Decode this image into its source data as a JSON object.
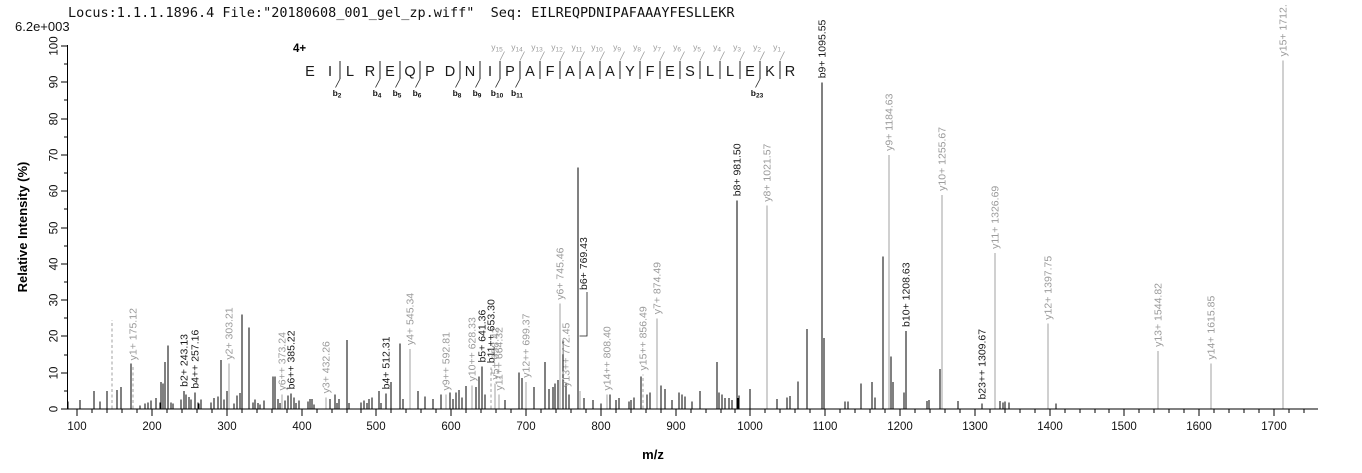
{
  "header": {
    "info_line": "Locus:1.1.1.1896.4 File:\"20180608_001_gel_zp.wiff\"  Seq: EILREQPDNIPAFAAAYFESLLEKR",
    "intensity_scale": "6.2e+003"
  },
  "peptide": {
    "charge_label": "4+",
    "sequence": "EILREQPDNIPAFAAAYFESLLEKR",
    "b_ions": [
      2,
      4,
      5,
      6,
      8,
      9,
      10,
      11,
      23
    ],
    "y_ions": [
      1,
      2,
      3,
      4,
      5,
      6,
      7,
      8,
      9,
      10,
      11,
      12,
      13,
      14,
      15
    ]
  },
  "axes": {
    "x_title": "m/z",
    "y_title": "Relative  Intensity (%)",
    "x_major_ticks": [
      100,
      200,
      300,
      400,
      500,
      600,
      700,
      800,
      900,
      1000,
      1100,
      1200,
      1300,
      1400,
      1500,
      1600,
      1700
    ],
    "x_minor_step": 20,
    "x_domain": [
      87,
      1760
    ],
    "y_major_ticks": [
      0,
      10,
      20,
      30,
      40,
      50,
      60,
      70,
      80,
      90,
      100
    ],
    "y_minor_step": 5,
    "y_domain": [
      0,
      100
    ]
  },
  "colors": {
    "peak_black": "#000000",
    "peak_gray": "#a0a0a0",
    "label_gray": "#9b9b9b",
    "label_black": "#1a1a1a",
    "axis": "#000000"
  },
  "chart_data": {
    "type": "bar",
    "subtype": "centroided-mass-spectrum",
    "xlabel": "m/z",
    "ylabel": "Relative Intensity (%)",
    "xlim": [
      87,
      1760
    ],
    "ylim": [
      0,
      100
    ],
    "peaks": [
      {
        "mz": 88,
        "i": 2
      },
      {
        "mz": 104,
        "i": 2.5
      },
      {
        "mz": 122,
        "i": 5
      },
      {
        "mz": 130,
        "i": 2
      },
      {
        "mz": 140,
        "i": 5
      },
      {
        "mz": 146,
        "i": 24.5,
        "s": "gd"
      },
      {
        "mz": 153,
        "i": 5.3
      },
      {
        "mz": 158,
        "i": 6
      },
      {
        "mz": 172,
        "i": 12.5
      },
      {
        "mz": 175.12,
        "i": 12.3,
        "s": "gd",
        "ion": "y",
        "label": "y1+ 175.12"
      },
      {
        "mz": 184,
        "i": 1
      },
      {
        "mz": 190,
        "i": 1.5
      },
      {
        "mz": 194,
        "i": 1.8
      },
      {
        "mz": 199,
        "i": 2.4
      },
      {
        "mz": 205,
        "i": 3
      },
      {
        "mz": 210,
        "i": 1.8
      },
      {
        "mz": 212,
        "i": 7.5
      },
      {
        "mz": 215,
        "i": 7
      },
      {
        "mz": 218,
        "i": 13
      },
      {
        "mz": 222,
        "i": 17.5
      },
      {
        "mz": 225,
        "i": 1.8
      },
      {
        "mz": 228,
        "i": 1.5
      },
      {
        "mz": 239,
        "i": 2.6
      },
      {
        "mz": 243.13,
        "i": 5,
        "ion": "b",
        "label": "b2+ 243.13"
      },
      {
        "mz": 246,
        "i": 4
      },
      {
        "mz": 249,
        "i": 3.3
      },
      {
        "mz": 252,
        "i": 2.6
      },
      {
        "mz": 257.16,
        "i": 4.5,
        "ion": "b",
        "label": "b4++ 257.16"
      },
      {
        "mz": 261,
        "i": 1.8
      },
      {
        "mz": 263,
        "i": 1.5
      },
      {
        "mz": 266,
        "i": 2.6
      },
      {
        "mz": 279,
        "i": 1.8
      },
      {
        "mz": 283,
        "i": 3
      },
      {
        "mz": 288,
        "i": 3.5
      },
      {
        "mz": 292,
        "i": 13.5
      },
      {
        "mz": 296,
        "i": 2.6
      },
      {
        "mz": 300,
        "i": 4.9
      },
      {
        "mz": 303.21,
        "i": 12.5,
        "s": "g",
        "ion": "y",
        "label": "y2+ 303.21"
      },
      {
        "mz": 310,
        "i": 1.5
      },
      {
        "mz": 314,
        "i": 3.7
      },
      {
        "mz": 317,
        "i": 4.4
      },
      {
        "mz": 320,
        "i": 26
      },
      {
        "mz": 329,
        "i": 22.5
      },
      {
        "mz": 335,
        "i": 1.8
      },
      {
        "mz": 338,
        "i": 2.6
      },
      {
        "mz": 342,
        "i": 1.6
      },
      {
        "mz": 345,
        "i": 1.2
      },
      {
        "mz": 350,
        "i": 2.3
      },
      {
        "mz": 362,
        "i": 9
      },
      {
        "mz": 365,
        "i": 9
      },
      {
        "mz": 368,
        "i": 2.7
      },
      {
        "mz": 371,
        "i": 1.6
      },
      {
        "mz": 373.24,
        "i": 4,
        "s": "g",
        "ion": "y",
        "label": "y6++ 373.24"
      },
      {
        "mz": 378,
        "i": 2.3
      },
      {
        "mz": 382,
        "i": 3.7
      },
      {
        "mz": 385.22,
        "i": 4.3,
        "ion": "b",
        "label": "b6++ 385.22"
      },
      {
        "mz": 390,
        "i": 3.2
      },
      {
        "mz": 393,
        "i": 1.6
      },
      {
        "mz": 396,
        "i": 2.3
      },
      {
        "mz": 408,
        "i": 2.1
      },
      {
        "mz": 411,
        "i": 2.7
      },
      {
        "mz": 414,
        "i": 2.7
      },
      {
        "mz": 417,
        "i": 1.2
      },
      {
        "mz": 432.26,
        "i": 3.2,
        "s": "g",
        "ion": "y",
        "label": "y3+ 432.26"
      },
      {
        "mz": 438,
        "i": 2.7
      },
      {
        "mz": 444,
        "i": 4
      },
      {
        "mz": 447,
        "i": 1.6
      },
      {
        "mz": 450,
        "i": 2.7
      },
      {
        "mz": 460,
        "i": 19
      },
      {
        "mz": 464,
        "i": 1.6
      },
      {
        "mz": 480,
        "i": 1.8
      },
      {
        "mz": 484,
        "i": 2.3
      },
      {
        "mz": 487,
        "i": 1.6
      },
      {
        "mz": 490,
        "i": 2.7
      },
      {
        "mz": 494,
        "i": 3.2
      },
      {
        "mz": 503,
        "i": 5
      },
      {
        "mz": 506,
        "i": 1.6
      },
      {
        "mz": 512.31,
        "i": 4.3,
        "ion": "b",
        "label": "b4+ 512.31"
      },
      {
        "mz": 520,
        "i": 7.5
      },
      {
        "mz": 531,
        "i": 18
      },
      {
        "mz": 535,
        "i": 2.7
      },
      {
        "mz": 545.34,
        "i": 16.5,
        "s": "g",
        "ion": "y",
        "label": "y4+ 545.34"
      },
      {
        "mz": 556,
        "i": 5
      },
      {
        "mz": 565,
        "i": 3.5
      },
      {
        "mz": 576,
        "i": 2.7
      },
      {
        "mz": 586,
        "i": 4
      },
      {
        "mz": 592.81,
        "i": 4,
        "s": "g",
        "ion": "y",
        "label": "y9++ 592.81"
      },
      {
        "mz": 598,
        "i": 4.5
      },
      {
        "mz": 603,
        "i": 2.7
      },
      {
        "mz": 606,
        "i": 4.6
      },
      {
        "mz": 611,
        "i": 5.2
      },
      {
        "mz": 615,
        "i": 3.2
      },
      {
        "mz": 620,
        "i": 6.4
      },
      {
        "mz": 628.33,
        "i": 6.5,
        "s": "g",
        "ion": "y",
        "label": "y10++ 628.33"
      },
      {
        "mz": 633,
        "i": 6
      },
      {
        "mz": 637,
        "i": 9
      },
      {
        "mz": 641.36,
        "i": 11.7,
        "ion": "b",
        "label": "b5+ 641.36"
      },
      {
        "mz": 644.5,
        "i": 4
      },
      {
        "mz": 653.3,
        "i": 11.5,
        "s": "gd",
        "ion": "b",
        "label": "b11++ 653.30"
      },
      {
        "mz": 658.42,
        "i": 7,
        "s": "g",
        "ion": "y",
        "label": "y5+ 658.42"
      },
      {
        "mz": 664.32,
        "i": 4,
        "s": "g",
        "ion": "y",
        "label": "y11++ 664.32"
      },
      {
        "mz": 672,
        "i": 2.5
      },
      {
        "mz": 690,
        "i": 10
      },
      {
        "mz": 695,
        "i": 8.5
      },
      {
        "mz": 699.37,
        "i": 7.5,
        "s": "g",
        "ion": "y",
        "label": "y12++ 699.37"
      },
      {
        "mz": 710,
        "i": 6
      },
      {
        "mz": 726,
        "i": 13
      },
      {
        "mz": 731,
        "i": 5.5
      },
      {
        "mz": 736,
        "i": 6
      },
      {
        "mz": 739,
        "i": 7
      },
      {
        "mz": 743,
        "i": 8
      },
      {
        "mz": 745.46,
        "i": 29,
        "s": "g",
        "ion": "y",
        "label": "y6+ 745.46"
      },
      {
        "mz": 750,
        "i": 19
      },
      {
        "mz": 753,
        "i": 7
      },
      {
        "mz": 757,
        "i": 4
      },
      {
        "mz": 769.43,
        "i": 66.5,
        "ion": "b",
        "label": "b6+ 769.43",
        "ly": 290
      },
      {
        "mz": 772.45,
        "i": 5,
        "s": "g",
        "ion": "y",
        "label": "y13++ 772.45",
        "lxo": -14
      },
      {
        "mz": 778,
        "i": 3
      },
      {
        "mz": 790,
        "i": 2.5
      },
      {
        "mz": 800,
        "i": 1.5
      },
      {
        "mz": 808.4,
        "i": 4,
        "s": "g",
        "ion": "y",
        "label": "y14++ 808.40"
      },
      {
        "mz": 812,
        "i": 4
      },
      {
        "mz": 820,
        "i": 2.5
      },
      {
        "mz": 824,
        "i": 3
      },
      {
        "mz": 838,
        "i": 2
      },
      {
        "mz": 841,
        "i": 2.5
      },
      {
        "mz": 844,
        "i": 3.2
      },
      {
        "mz": 854,
        "i": 9
      },
      {
        "mz": 856.49,
        "i": 9.5,
        "s": "gd",
        "ion": "y",
        "label": "y15++ 856.49"
      },
      {
        "mz": 862,
        "i": 4
      },
      {
        "mz": 866,
        "i": 4.5
      },
      {
        "mz": 874.49,
        "i": 25,
        "s": "g",
        "ion": "y",
        "label": "y7+ 874.49"
      },
      {
        "mz": 881,
        "i": 6.5
      },
      {
        "mz": 886,
        "i": 5.5
      },
      {
        "mz": 895,
        "i": 2.5
      },
      {
        "mz": 905,
        "i": 4.5
      },
      {
        "mz": 909,
        "i": 4
      },
      {
        "mz": 913,
        "i": 3.5
      },
      {
        "mz": 922,
        "i": 2
      },
      {
        "mz": 933,
        "i": 5
      },
      {
        "mz": 955,
        "i": 13
      },
      {
        "mz": 958,
        "i": 4.5
      },
      {
        "mz": 962,
        "i": 4
      },
      {
        "mz": 966,
        "i": 3
      },
      {
        "mz": 971,
        "i": 3
      },
      {
        "mz": 976,
        "i": 2.5
      },
      {
        "mz": 981.5,
        "i": 57.5,
        "ion": "b",
        "label": "b8+ 981.50"
      },
      {
        "mz": 983,
        "i": 3
      },
      {
        "mz": 985,
        "i": 3.7
      },
      {
        "mz": 1000,
        "i": 5.5
      },
      {
        "mz": 1021.57,
        "i": 56,
        "s": "g",
        "ion": "y",
        "label": "y8+ 1021.57"
      },
      {
        "mz": 1036,
        "i": 2.7
      },
      {
        "mz": 1049,
        "i": 3.1
      },
      {
        "mz": 1053,
        "i": 3.6
      },
      {
        "mz": 1064,
        "i": 7.6
      },
      {
        "mz": 1076,
        "i": 22
      },
      {
        "mz": 1095.55,
        "i": 90,
        "ion": "b",
        "label": "b9+ 1095.55"
      },
      {
        "mz": 1098,
        "i": 19.5
      },
      {
        "mz": 1126,
        "i": 2
      },
      {
        "mz": 1131,
        "i": 2
      },
      {
        "mz": 1148,
        "i": 7
      },
      {
        "mz": 1162,
        "i": 7.5
      },
      {
        "mz": 1166,
        "i": 3.1
      },
      {
        "mz": 1177,
        "i": 42
      },
      {
        "mz": 1184.63,
        "i": 70,
        "s": "g",
        "ion": "y",
        "label": "y9+ 1184.63"
      },
      {
        "mz": 1188,
        "i": 14.5
      },
      {
        "mz": 1191,
        "i": 7.5
      },
      {
        "mz": 1205,
        "i": 4.5
      },
      {
        "mz": 1208.63,
        "i": 21.5,
        "ion": "b",
        "label": "b10+ 1208.63"
      },
      {
        "mz": 1236,
        "i": 2.2
      },
      {
        "mz": 1239,
        "i": 2.5
      },
      {
        "mz": 1253,
        "i": 11
      },
      {
        "mz": 1255.67,
        "i": 59,
        "s": "g",
        "ion": "y",
        "label": "y10+ 1255.67"
      },
      {
        "mz": 1278,
        "i": 2.2
      },
      {
        "mz": 1309.67,
        "i": 1.5,
        "ion": "b",
        "label": "b23++ 1309.67"
      },
      {
        "mz": 1326.69,
        "i": 43,
        "s": "g",
        "ion": "y",
        "label": "y11+ 1326.69"
      },
      {
        "mz": 1333,
        "i": 2.2
      },
      {
        "mz": 1337,
        "i": 1.8
      },
      {
        "mz": 1340,
        "i": 2
      },
      {
        "mz": 1346,
        "i": 1.8
      },
      {
        "mz": 1397.75,
        "i": 23.5,
        "s": "g",
        "ion": "y",
        "label": "y12+ 1397.75"
      },
      {
        "mz": 1408,
        "i": 1.5
      },
      {
        "mz": 1544.82,
        "i": 16,
        "s": "g",
        "ion": "y",
        "label": "y13+ 1544.82"
      },
      {
        "mz": 1615.85,
        "i": 12.5,
        "s": "g",
        "ion": "y",
        "label": "y14+ 1615.85"
      },
      {
        "mz": 1712,
        "i": 96,
        "s": "g",
        "ion": "y",
        "label": "y15+ 1712."
      }
    ]
  }
}
